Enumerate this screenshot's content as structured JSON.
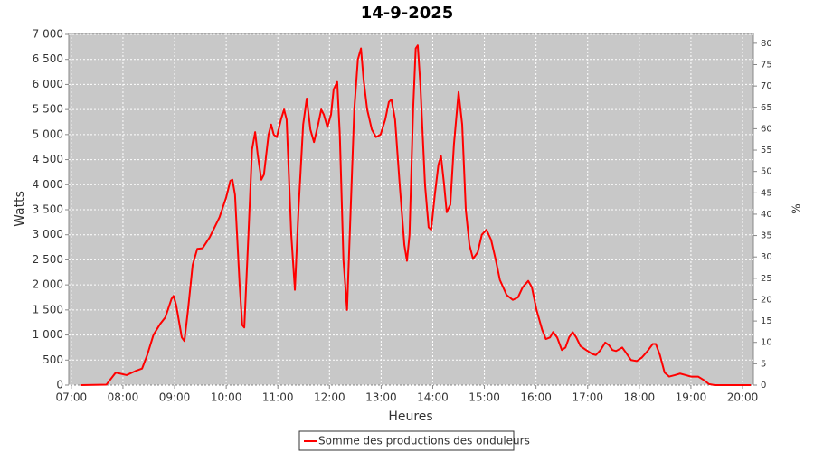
{
  "chart_data": {
    "type": "line",
    "title": "14-9-2025",
    "x_label": "Heures",
    "y_label": "Watts",
    "y2_label": "%",
    "grid": true,
    "legend": "bottom",
    "xlim": [
      6.95,
      20.21
    ],
    "ylim": [
      0,
      7018
    ],
    "y2lim": [
      0,
      82.3
    ],
    "xticks": [
      {
        "value": 7,
        "label": "07:00"
      },
      {
        "value": 8,
        "label": "08:00"
      },
      {
        "value": 9,
        "label": "09:00"
      },
      {
        "value": 10,
        "label": "10:00"
      },
      {
        "value": 11,
        "label": "11:00"
      },
      {
        "value": 12,
        "label": "12:00"
      },
      {
        "value": 13,
        "label": "13:00"
      },
      {
        "value": 14,
        "label": "14:00"
      },
      {
        "value": 15,
        "label": "15:00"
      },
      {
        "value": 16,
        "label": "16:00"
      },
      {
        "value": 17,
        "label": "17:00"
      },
      {
        "value": 18,
        "label": "18:00"
      },
      {
        "value": 19,
        "label": "19:00"
      },
      {
        "value": 20,
        "label": "20:00"
      }
    ],
    "yticks": [
      0,
      500,
      {
        "value": 1000,
        "label": "1 000"
      },
      {
        "value": 1500,
        "label": "1 500"
      },
      {
        "value": 2000,
        "label": "2 000"
      },
      {
        "value": 2500,
        "label": "2 500"
      },
      {
        "value": 3000,
        "label": "3 000"
      },
      {
        "value": 3500,
        "label": "3 500"
      },
      {
        "value": 4000,
        "label": "4 000"
      },
      {
        "value": 4500,
        "label": "4 500"
      },
      {
        "value": 5000,
        "label": "5 000"
      },
      {
        "value": 5500,
        "label": "5 500"
      },
      {
        "value": 6000,
        "label": "6 000"
      },
      {
        "value": 6500,
        "label": "6 500"
      },
      {
        "value": 7000,
        "label": "7 000"
      }
    ],
    "y2ticks": [
      0,
      5,
      10,
      15,
      20,
      25,
      30,
      35,
      40,
      45,
      50,
      55,
      60,
      65,
      70,
      75,
      80
    ],
    "x": [
      7.19,
      7.68,
      7.86,
      8.07,
      8.24,
      8.37,
      8.47,
      8.59,
      8.72,
      8.82,
      8.94,
      8.98,
      9.03,
      9.14,
      9.19,
      9.26,
      9.35,
      9.44,
      9.54,
      9.68,
      9.87,
      10.0,
      10.08,
      10.12,
      10.17,
      10.26,
      10.31,
      10.35,
      10.43,
      10.5,
      10.56,
      10.61,
      10.68,
      10.73,
      10.82,
      10.87,
      10.92,
      10.98,
      11.06,
      11.12,
      11.17,
      11.26,
      11.33,
      11.4,
      11.49,
      11.56,
      11.63,
      11.7,
      11.78,
      11.84,
      11.89,
      11.96,
      12.03,
      12.08,
      12.15,
      12.2,
      12.27,
      12.34,
      12.41,
      12.48,
      12.55,
      12.61,
      12.66,
      12.73,
      12.82,
      12.9,
      12.99,
      13.08,
      13.15,
      13.2,
      13.27,
      13.36,
      13.45,
      13.5,
      13.55,
      13.62,
      13.67,
      13.71,
      13.76,
      13.85,
      13.92,
      13.97,
      14.04,
      14.11,
      14.16,
      14.22,
      14.27,
      14.34,
      14.41,
      14.5,
      14.57,
      14.64,
      14.71,
      14.78,
      14.87,
      14.95,
      15.04,
      15.13,
      15.22,
      15.3,
      15.43,
      15.55,
      15.65,
      15.74,
      15.85,
      15.92,
      16.01,
      16.12,
      16.19,
      16.27,
      16.33,
      16.41,
      16.5,
      16.57,
      16.64,
      16.71,
      16.78,
      16.86,
      16.97,
      17.09,
      17.16,
      17.25,
      17.34,
      17.41,
      17.48,
      17.55,
      17.67,
      17.74,
      17.84,
      17.95,
      18.05,
      18.16,
      18.26,
      18.32,
      18.4,
      18.49,
      18.58,
      18.69,
      18.79,
      18.9,
      19.0,
      19.14,
      19.25,
      19.35,
      19.46,
      20.16
    ],
    "series": [
      {
        "name": "Somme des productions des onduleurs",
        "color": "#ff0000",
        "values": [
          0,
          10,
          250,
          200,
          280,
          330,
          600,
          1000,
          1220,
          1350,
          1720,
          1780,
          1600,
          950,
          880,
          1500,
          2400,
          2720,
          2730,
          2950,
          3350,
          3750,
          4080,
          4100,
          3800,
          2000,
          1200,
          1150,
          3000,
          4700,
          5050,
          4600,
          4100,
          4200,
          5000,
          5200,
          5000,
          4950,
          5300,
          5500,
          5300,
          3000,
          1900,
          3500,
          5200,
          5720,
          5100,
          4850,
          5200,
          5500,
          5400,
          5150,
          5400,
          5900,
          6050,
          5000,
          2500,
          1500,
          3500,
          5500,
          6500,
          6720,
          6100,
          5500,
          5100,
          4950,
          5000,
          5300,
          5650,
          5700,
          5300,
          4000,
          2800,
          2480,
          3000,
          5500,
          6720,
          6780,
          6000,
          4000,
          3150,
          3100,
          3800,
          4400,
          4570,
          4000,
          3450,
          3600,
          4800,
          5850,
          5200,
          3500,
          2800,
          2520,
          2650,
          3000,
          3100,
          2900,
          2500,
          2100,
          1800,
          1700,
          1750,
          1950,
          2080,
          1950,
          1500,
          1100,
          920,
          950,
          1060,
          950,
          700,
          750,
          950,
          1060,
          950,
          780,
          700,
          620,
          600,
          700,
          850,
          800,
          700,
          680,
          750,
          650,
          500,
          480,
          550,
          680,
          820,
          820,
          600,
          250,
          170,
          200,
          230,
          200,
          170,
          170,
          100,
          20,
          0,
          0
        ]
      }
    ]
  }
}
